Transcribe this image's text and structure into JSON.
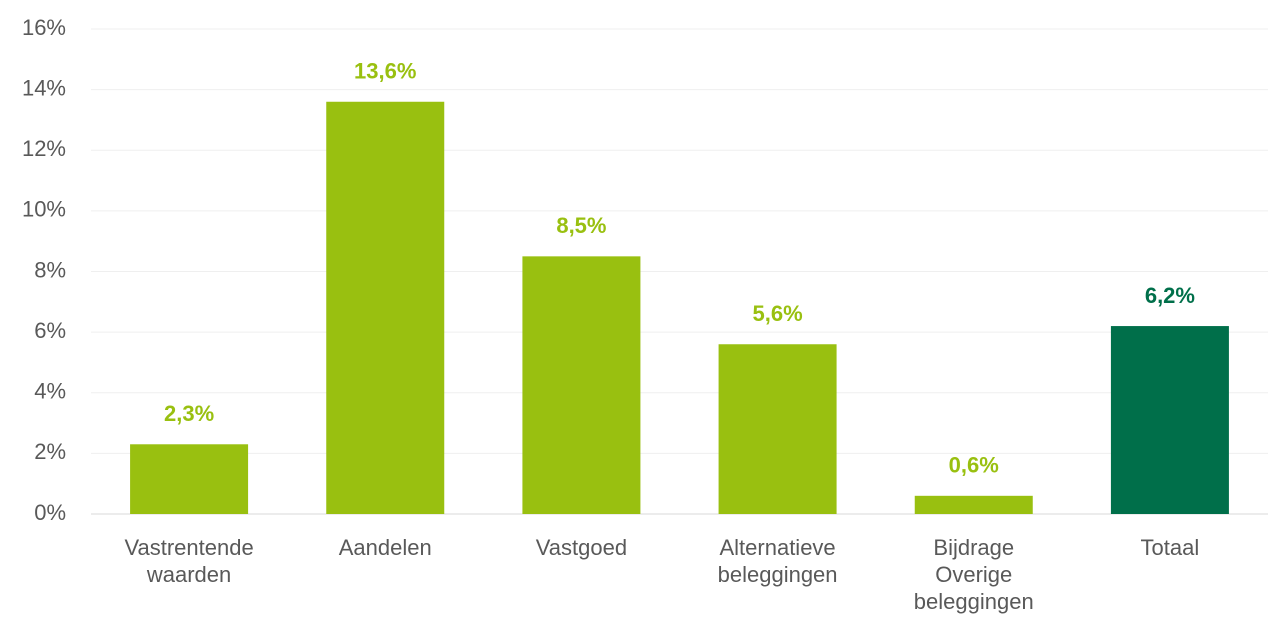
{
  "chart_data": {
    "type": "bar",
    "categories": [
      "Vastrentende waarden",
      "Aandelen",
      "Vastgoed",
      "Alternatieve beleggingen",
      "Bijdrage Overige beleggingen",
      "Totaal"
    ],
    "values": [
      2.3,
      13.6,
      8.5,
      5.6,
      0.6,
      6.2
    ],
    "value_labels": [
      "2,3%",
      "13,6%",
      "8,5%",
      "5,6%",
      "0,6%",
      "6,2%"
    ],
    "colors": [
      "#99c010",
      "#99c010",
      "#99c010",
      "#99c010",
      "#99c010",
      "#006f4a"
    ],
    "ylim": [
      0,
      16
    ],
    "yticks": [
      {
        "value": 0,
        "label": "0%"
      },
      {
        "value": 2,
        "label": "2%"
      },
      {
        "value": 4,
        "label": "4%"
      },
      {
        "value": 6,
        "label": "6%"
      },
      {
        "value": 8,
        "label": "8%"
      },
      {
        "value": 10,
        "label": "10%"
      },
      {
        "value": 12,
        "label": "12%"
      },
      {
        "value": 14,
        "label": "14%"
      },
      {
        "value": 16,
        "label": "16%"
      }
    ],
    "grid": true
  }
}
